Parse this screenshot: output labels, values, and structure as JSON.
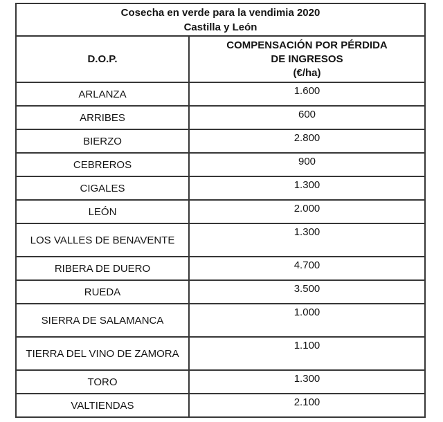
{
  "table": {
    "title_line1": "Cosecha en verde para la vendimia 2020",
    "title_line2": "Castilla y León",
    "columns": {
      "dop": "D.O.P.",
      "comp_line1": "COMPENSACIÓN POR PÉRDIDA",
      "comp_line2": "DE INGRESOS",
      "comp_line3": "(€/ha)"
    },
    "rows": [
      {
        "dop": "ARLANZA",
        "value": "1.600"
      },
      {
        "dop": "ARRIBES",
        "value": "600"
      },
      {
        "dop": "BIERZO",
        "value": "2.800"
      },
      {
        "dop": "CEBREROS",
        "value": "900"
      },
      {
        "dop": "CIGALES",
        "value": "1.300"
      },
      {
        "dop": "LEÓN",
        "value": "2.000"
      },
      {
        "dop": "LOS VALLES DE BENAVENTE",
        "value": "1.300"
      },
      {
        "dop": "RIBERA DE DUERO",
        "value": "4.700"
      },
      {
        "dop": "RUEDA",
        "value": "3.500"
      },
      {
        "dop": "SIERRA DE SALAMANCA",
        "value": "1.000"
      },
      {
        "dop": "TIERRA DEL VINO DE ZAMORA",
        "value": "1.100"
      },
      {
        "dop": "TORO",
        "value": "1.300"
      },
      {
        "dop": "VALTIENDAS",
        "value": "2.100"
      }
    ],
    "colors": {
      "border": "#373737",
      "text": "#151515",
      "background": "#ffffff"
    }
  },
  "chart_data": {
    "type": "table",
    "title": "Cosecha en verde para la vendimia 2020 - Castilla y León",
    "columns": [
      "D.O.P.",
      "COMPENSACIÓN POR PÉRDIDA DE INGRESOS (€/ha)"
    ],
    "categories": [
      "ARLANZA",
      "ARRIBES",
      "BIERZO",
      "CEBREROS",
      "CIGALES",
      "LEÓN",
      "LOS VALLES DE BENAVENTE",
      "RIBERA DE DUERO",
      "RUEDA",
      "SIERRA DE SALAMANCA",
      "TIERRA DEL VINO DE ZAMORA",
      "TORO",
      "VALTIENDAS"
    ],
    "values": [
      1600,
      600,
      2800,
      900,
      1300,
      2000,
      1300,
      4700,
      3500,
      1000,
      1100,
      1300,
      2100
    ]
  }
}
